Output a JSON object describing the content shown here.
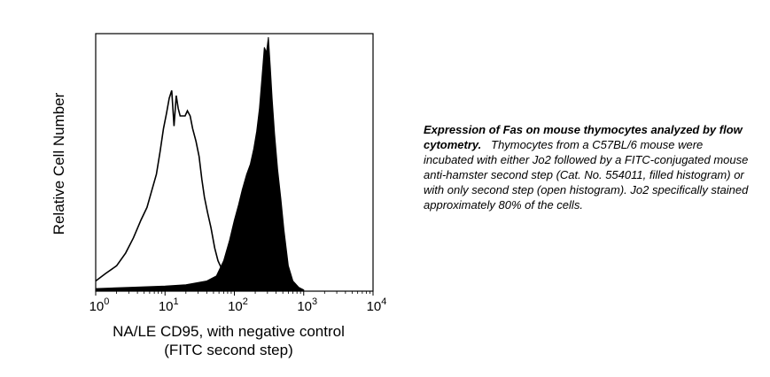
{
  "chart_data": {
    "type": "area",
    "title": "",
    "xlabel": "NA/LE CD95, with negative control",
    "xlabel_line2": "(FITC second step)",
    "ylabel": "Relative Cell Number",
    "x_scale": "log",
    "xlim": [
      1,
      10000
    ],
    "ylim": [
      0,
      100
    ],
    "grid": false,
    "x_ticks": [
      {
        "base": "10",
        "exp": "0",
        "value": 1
      },
      {
        "base": "10",
        "exp": "1",
        "value": 10
      },
      {
        "base": "10",
        "exp": "2",
        "value": 100
      },
      {
        "base": "10",
        "exp": "3",
        "value": 1000
      },
      {
        "base": "10",
        "exp": "4",
        "value": 10000
      }
    ],
    "series": [
      {
        "style": "open",
        "color": "#000000",
        "x": [
          1,
          1.4,
          2,
          2.7,
          3.5,
          4.5,
          5.5,
          6.5,
          7.5,
          8.5,
          9.5,
          10.5,
          11.5,
          12.5,
          13.5,
          14.5,
          15.5,
          16.5,
          18,
          19.5,
          21,
          23,
          25,
          28,
          31,
          34,
          37,
          41,
          46,
          52,
          58,
          65,
          72,
          80,
          90,
          100
        ],
        "y": [
          4,
          7,
          10,
          15,
          21,
          28,
          33,
          40,
          46,
          55,
          64,
          70,
          76,
          79,
          65,
          77,
          72,
          69,
          69,
          69,
          71,
          69,
          64,
          59,
          53,
          44,
          37,
          31,
          25,
          17,
          12,
          9,
          6,
          4,
          2,
          1
        ]
      },
      {
        "style": "filled",
        "color": "#000000",
        "x": [
          1,
          3,
          10,
          20,
          40,
          55,
          70,
          85,
          100,
          115,
          130,
          150,
          170,
          190,
          210,
          230,
          250,
          270,
          290,
          310,
          330,
          350,
          380,
          420,
          470,
          520,
          600,
          700,
          850,
          1000
        ],
        "y": [
          1,
          1.5,
          2,
          2.5,
          4,
          6,
          12,
          20,
          28,
          34,
          40,
          46,
          50,
          56,
          63,
          72,
          84,
          96,
          94,
          100,
          88,
          76,
          62,
          48,
          36,
          24,
          10,
          4,
          1.5,
          0.5
        ]
      }
    ]
  },
  "caption": {
    "title": "Expression of Fas on mouse thymocytes analyzed by flow cytometry.",
    "body": "Thymocytes from a C57BL/6 mouse were incubated with either Jo2 followed by a FITC-conjugated mouse anti-hamster second step (Cat. No. 554011, filled histogram) or with only second step (open histogram). Jo2 specifically stained approximately 80% of the cells."
  }
}
